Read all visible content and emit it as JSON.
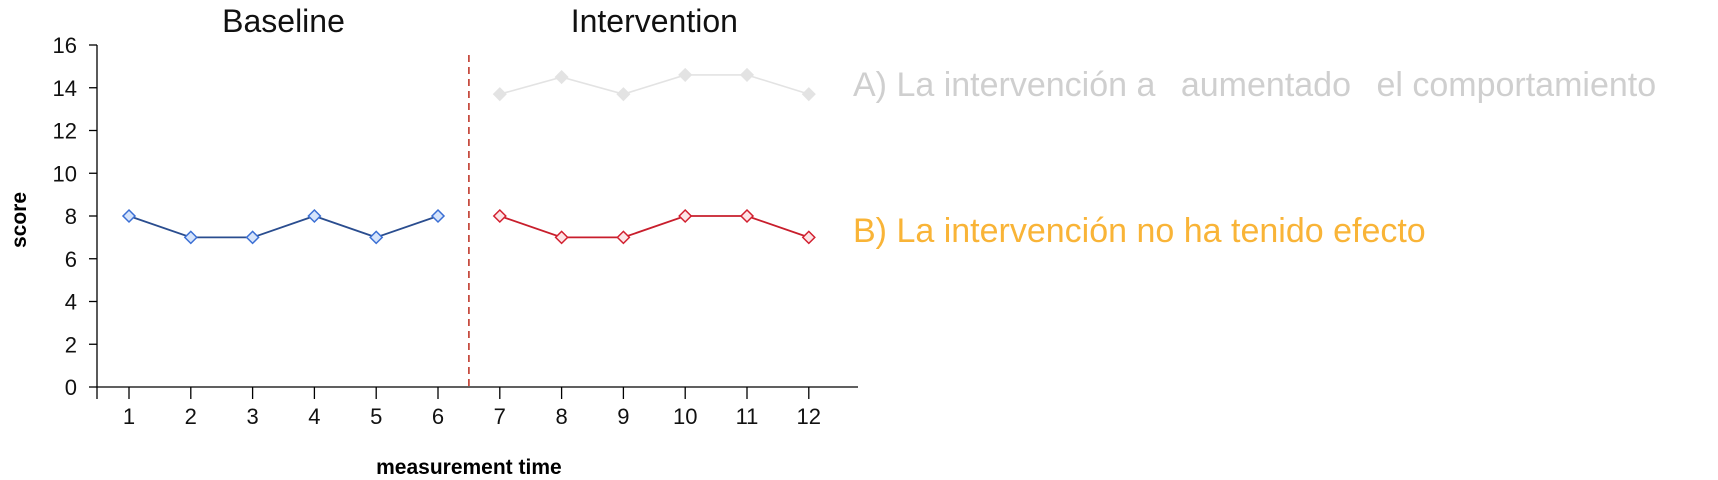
{
  "chart_data": {
    "type": "line",
    "xlabel": "measurement time",
    "ylabel": "score",
    "ylim": [
      0,
      16
    ],
    "yticks": [
      "0",
      "2",
      "4",
      "6",
      "8",
      "10",
      "12",
      "14",
      "16"
    ],
    "xticks": [
      "1",
      "2",
      "3",
      "4",
      "5",
      "6",
      "7",
      "8",
      "9",
      "10",
      "11",
      "12"
    ],
    "phases": [
      {
        "label": "Baseline",
        "x_center": 3.5
      },
      {
        "label": "Intervention",
        "x_center": 9.5
      }
    ],
    "phase_change_x": 6.5,
    "grid": false,
    "series": [
      {
        "id": "baseline",
        "x": [
          1,
          2,
          3,
          4,
          5,
          6
        ],
        "values": [
          8,
          7,
          7,
          8,
          7,
          8
        ],
        "color": "#2a4d8f",
        "marker_fill": "#d6e4fb",
        "marker_stroke": "#3b6fd4",
        "faded": false
      },
      {
        "id": "intervention-a",
        "x": [
          7,
          8,
          9,
          10,
          11,
          12
        ],
        "values": [
          13.7,
          14.5,
          13.7,
          14.6,
          14.6,
          13.7
        ],
        "color": "#e3e3e3",
        "marker_fill": "#e3e3e3",
        "marker_stroke": "#e3e3e3",
        "faded": true
      },
      {
        "id": "intervention-b",
        "x": [
          7,
          8,
          9,
          10,
          11,
          12
        ],
        "values": [
          8,
          7,
          7,
          8,
          8,
          7
        ],
        "color": "#c81e2c",
        "marker_fill": "#fde4e6",
        "marker_stroke": "#d21f2f",
        "faded": false
      }
    ],
    "annotations": [
      {
        "id": "option-a",
        "parts": [
          "A) La intervención a",
          "aumentado",
          "el comportamiento"
        ],
        "color": "#cfcfcf"
      },
      {
        "id": "option-b",
        "text": "B) La intervención no ha tenido efecto",
        "color": "#f9b437"
      }
    ],
    "phase_line_color": "#c0392b"
  }
}
